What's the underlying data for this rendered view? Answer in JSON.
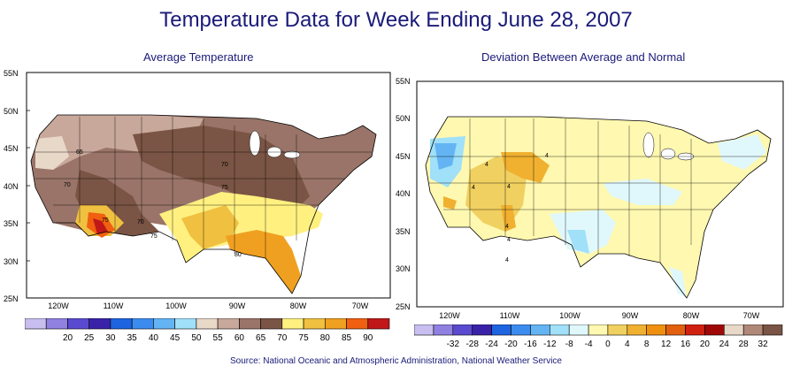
{
  "title": "Temperature Data for Week Ending June 28, 2007",
  "source": "Source:  National Oceanic and Atmospheric Administration, National Weather Service",
  "maps": {
    "left": {
      "title": "Average Temperature",
      "lat_labels": [
        "55N",
        "50N",
        "45N",
        "40N",
        "35N",
        "30N",
        "25N"
      ],
      "lon_labels": [
        "120W",
        "110W",
        "100W",
        "90W",
        "80W",
        "70W"
      ],
      "contour_labels": [
        "65",
        "70",
        "70",
        "75",
        "70",
        "75",
        "75",
        "80"
      ]
    },
    "right": {
      "title": "Deviation Between Average and Normal",
      "lat_labels": [
        "55N",
        "50N",
        "45N",
        "40N",
        "35N",
        "30N",
        "25N"
      ],
      "lon_labels": [
        "120W",
        "110W",
        "100W",
        "90W",
        "80W",
        "70W"
      ],
      "contour_labels": [
        "4",
        "4",
        "4",
        "4",
        "4",
        "4",
        "4"
      ]
    }
  },
  "legend_left": {
    "colors": [
      "#c8bff0",
      "#9080e0",
      "#5a4ad0",
      "#3a22a8",
      "#1e64e0",
      "#3c8cf0",
      "#64b4f4",
      "#a0e0f8",
      "#e8d8c8",
      "#c8a89a",
      "#9a7468",
      "#7a5444",
      "#fff080",
      "#f0c040",
      "#f0a020",
      "#f06010",
      "#c01818"
    ],
    "labels": [
      "20",
      "25",
      "30",
      "35",
      "40",
      "45",
      "50",
      "55",
      "60",
      "65",
      "70",
      "75",
      "80",
      "85",
      "90"
    ]
  },
  "legend_right": {
    "colors": [
      "#c8bff0",
      "#9080e0",
      "#5a4ad0",
      "#3a22a8",
      "#1e64e0",
      "#3c8cf0",
      "#64b4f4",
      "#a0e0f8",
      "#e0f8fc",
      "#fff8b0",
      "#f0d060",
      "#f0b030",
      "#f09010",
      "#e06010",
      "#d02010",
      "#a00808",
      "#e8d8c8",
      "#b08878",
      "#7a5444"
    ],
    "labels": [
      "-32",
      "-28",
      "-24",
      "-20",
      "-16",
      "-12",
      "-8",
      "-4",
      "0",
      "4",
      "8",
      "12",
      "16",
      "20",
      "24",
      "28",
      "32"
    ]
  }
}
